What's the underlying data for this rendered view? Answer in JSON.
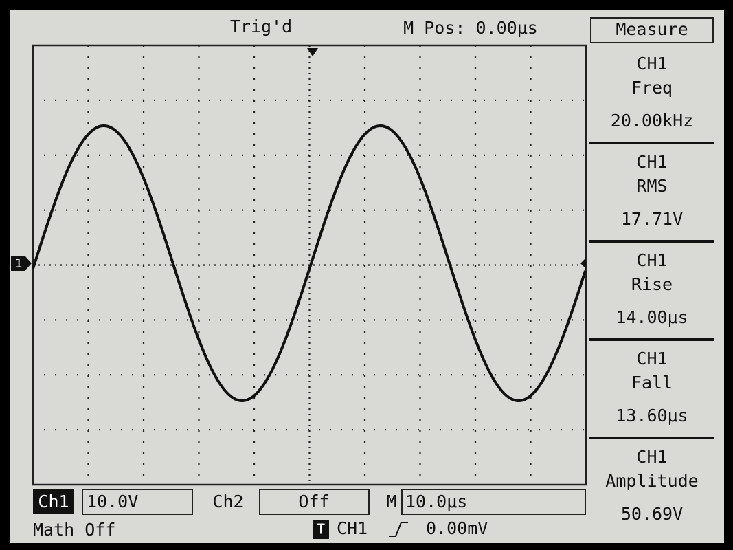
{
  "header": {
    "status": "Trig'd",
    "position": "M Pos: 0.00μs"
  },
  "marker": "1",
  "measure": {
    "title": "Measure",
    "items": [
      {
        "source": "CH1",
        "name": "Freq",
        "value": "20.00kHz"
      },
      {
        "source": "CH1",
        "name": "RMS",
        "value": "17.71V"
      },
      {
        "source": "CH1",
        "name": "Rise",
        "value": "14.00μs"
      },
      {
        "source": "CH1",
        "name": "Fall",
        "value": "13.60μs"
      },
      {
        "source": "CH1",
        "name": "Amplitude",
        "value": "50.69V"
      }
    ]
  },
  "footer": {
    "ch1": {
      "label": "Ch1",
      "scale": "10.0V"
    },
    "ch2": {
      "label": "Ch2",
      "scale": "Off"
    },
    "timebase": {
      "label": "M",
      "scale": "10.0μs"
    },
    "math": "Math Off",
    "trigger": {
      "label": "T",
      "source": "CH1",
      "level": "0.00mV"
    }
  }
}
